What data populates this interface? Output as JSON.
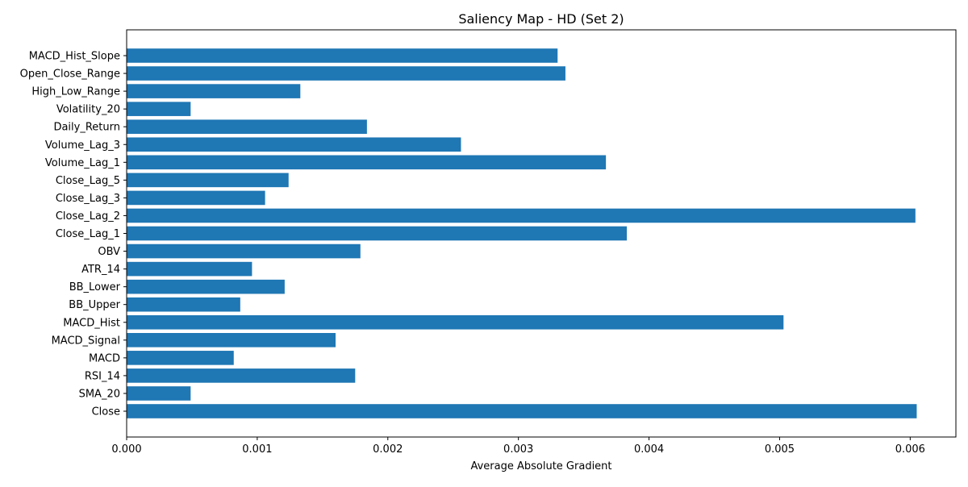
{
  "chart_data": {
    "type": "bar",
    "orientation": "horizontal",
    "title": "Saliency Map - HD (Set 2)",
    "xlabel": "Average Absolute Gradient",
    "ylabel": "",
    "xlim": [
      0,
      0.00635
    ],
    "x_ticks": [
      0,
      0.001,
      0.002,
      0.003,
      0.004,
      0.005,
      0.006
    ],
    "x_tick_labels": [
      "0.000",
      "0.001",
      "0.002",
      "0.003",
      "0.004",
      "0.005",
      "0.006"
    ],
    "categories": [
      "Close",
      "SMA_20",
      "RSI_14",
      "MACD",
      "MACD_Signal",
      "MACD_Hist",
      "BB_Upper",
      "BB_Lower",
      "ATR_14",
      "OBV",
      "Close_Lag_1",
      "Close_Lag_2",
      "Close_Lag_3",
      "Close_Lag_5",
      "Volume_Lag_1",
      "Volume_Lag_3",
      "Daily_Return",
      "Volatility_20",
      "High_Low_Range",
      "Open_Close_Range",
      "MACD_Hist_Slope"
    ],
    "values": [
      0.00605,
      0.00049,
      0.00175,
      0.00082,
      0.0016,
      0.00503,
      0.00087,
      0.00121,
      0.00096,
      0.00179,
      0.00383,
      0.00604,
      0.00106,
      0.00124,
      0.00367,
      0.00256,
      0.00184,
      0.00049,
      0.00133,
      0.00336,
      0.0033
    ],
    "bar_color": "#1f77b4",
    "grid": false,
    "legend": "none"
  }
}
